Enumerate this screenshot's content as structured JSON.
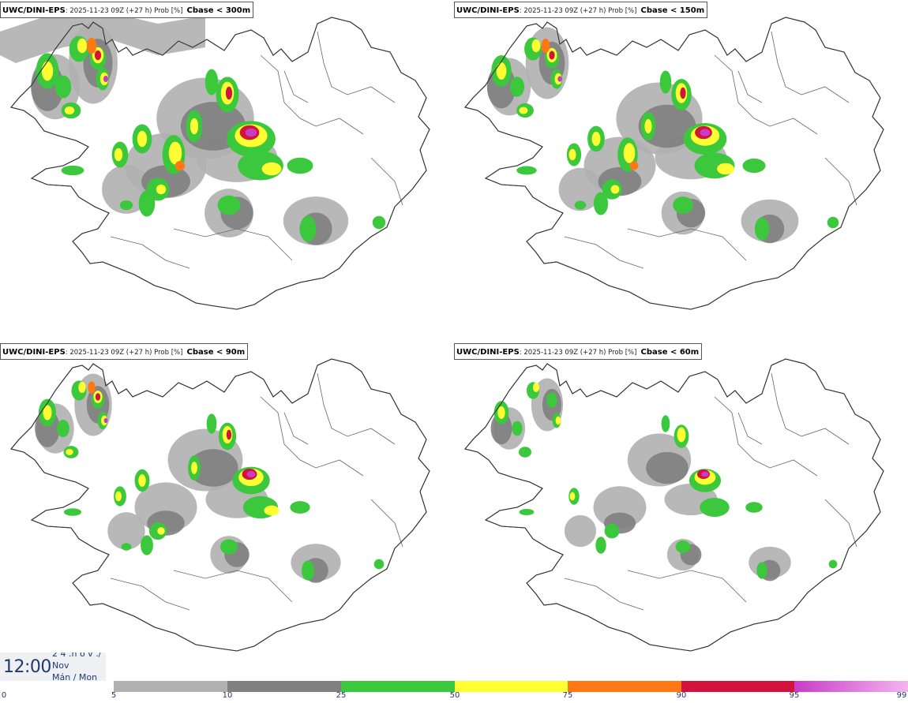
{
  "panels": [
    {
      "source": "UWC/DINI-EPS",
      "meta": ": 2025-11-23 09Z (+27 h) Prob [%]",
      "variable": "Cbase < 300m",
      "intensity": 4
    },
    {
      "source": "UWC/DINI-EPS",
      "meta": ": 2025-11-23 09Z (+27 h) Prob [%]",
      "variable": "Cbase < 150m",
      "intensity": 3
    },
    {
      "source": "UWC/DINI-EPS",
      "meta": ": 2025-11-23 09Z (+27 h) Prob [%]",
      "variable": "Cbase < 90m",
      "intensity": 2
    },
    {
      "source": "UWC/DINI-EPS",
      "meta": ": 2025-11-23 09Z (+27 h) Prob [%]",
      "variable": "Cbase < 60m",
      "intensity": 1
    }
  ],
  "time_box": {
    "time": "12:00",
    "date_cut": "2 4 .n o v ./",
    "month": "Nov",
    "day": "Mán / Mon"
  },
  "colorbar": {
    "ticks": [
      "0",
      "5",
      "10",
      "25",
      "50",
      "75",
      "90",
      "95",
      "99"
    ],
    "colors": [
      "#ffffff",
      "#b0b0b0",
      "#808080",
      "#3cc83c",
      "#ffff32",
      "#ff7814",
      "#d2143c",
      "#c83cc8",
      "#f5b4f0"
    ]
  }
}
